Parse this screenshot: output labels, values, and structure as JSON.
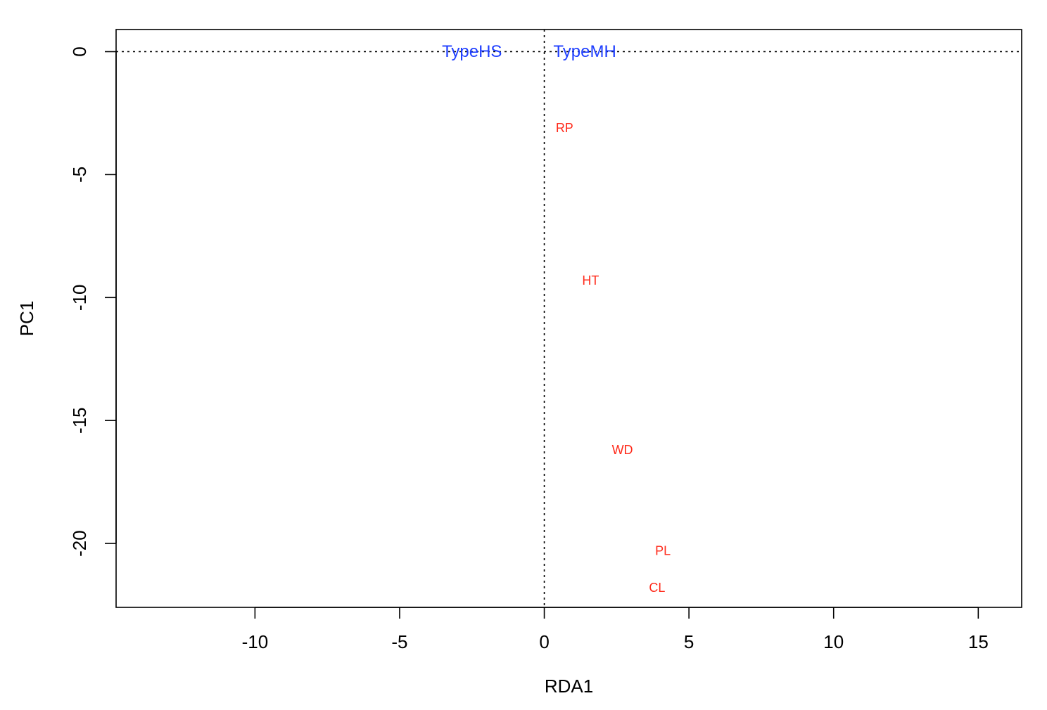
{
  "chart_data": {
    "type": "scatter",
    "xlabel": "RDA1",
    "ylabel": "PC1",
    "xlim": [
      -14.8,
      16.5
    ],
    "ylim": [
      -22.6,
      0.9
    ],
    "x_ticks": [
      -10,
      -5,
      0,
      5,
      10,
      15
    ],
    "x_tick_labels": [
      "-10",
      "-5",
      "0",
      "5",
      "10",
      "15"
    ],
    "y_ticks": [
      0,
      -5,
      -10,
      -15,
      -20
    ],
    "y_tick_labels": [
      "0",
      "-5",
      "-10",
      "-15",
      "-20"
    ],
    "reference_lines": {
      "x": 0,
      "y": 0,
      "style": "dotted"
    },
    "species_points": [
      {
        "label": "RP",
        "x": 0.7,
        "y": -3.1
      },
      {
        "label": "HT",
        "x": 1.6,
        "y": -9.3
      },
      {
        "label": "WD",
        "x": 2.7,
        "y": -16.2
      },
      {
        "label": "PL",
        "x": 4.1,
        "y": -20.3
      },
      {
        "label": "CL",
        "x": 3.9,
        "y": -21.8
      }
    ],
    "centroid_points": [
      {
        "label": "TypeHS",
        "x": -2.5,
        "y": 0
      },
      {
        "label": "TypeMH",
        "x": 1.4,
        "y": 0
      }
    ],
    "colors": {
      "species": "#ff2a1a",
      "centroid": "#1f3fff",
      "axis": "#000000"
    }
  }
}
